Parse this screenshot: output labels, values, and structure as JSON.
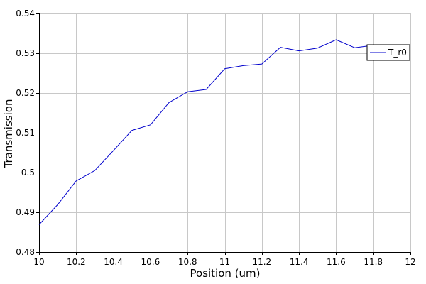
{
  "chart_data": {
    "type": "line",
    "xlabel": "Position (um)",
    "ylabel": "Transmission",
    "xlim": [
      10,
      12
    ],
    "ylim": [
      0.48,
      0.54
    ],
    "x_ticks": [
      "10",
      "10.2",
      "10.4",
      "10.6",
      "10.8",
      "11",
      "11.2",
      "11.4",
      "11.6",
      "11.8",
      "12"
    ],
    "y_ticks": [
      "0.48",
      "0.49",
      "0.5",
      "0.51",
      "0.52",
      "0.53",
      "0.54"
    ],
    "grid": true,
    "legend_position": "top-right",
    "series": [
      {
        "name": "T_r0",
        "color": "#0000cc",
        "x": [
          10.0,
          10.1,
          10.2,
          10.3,
          10.4,
          10.5,
          10.6,
          10.7,
          10.8,
          10.9,
          11.0,
          11.1,
          11.2,
          11.3,
          11.4,
          11.5,
          11.6,
          11.7,
          11.8
        ],
        "y": [
          0.4869,
          0.4919,
          0.4979,
          0.5005,
          0.5055,
          0.5106,
          0.512,
          0.5176,
          0.5203,
          0.5209,
          0.5261,
          0.5269,
          0.5273,
          0.5315,
          0.5306,
          0.5313,
          0.5334,
          0.5314,
          0.532
        ]
      }
    ]
  }
}
